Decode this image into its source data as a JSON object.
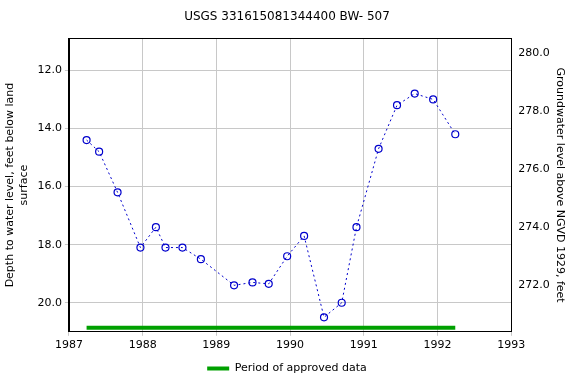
{
  "chart_data": {
    "type": "line",
    "title": "USGS 331615081344400 BW- 507",
    "y_label": "Depth to water level, feet below land surface",
    "y2_label": "Groundwater level above NGVD 1929, feet",
    "xlim": [
      1987,
      1993
    ],
    "xticks": [
      1987,
      1988,
      1989,
      1990,
      1991,
      1992,
      1993
    ],
    "ylim": [
      21.0,
      10.9
    ],
    "yticks": [
      {
        "value": 12,
        "label": "12.0"
      },
      {
        "value": 14,
        "label": "14.0"
      },
      {
        "value": 16,
        "label": "16.0"
      },
      {
        "value": 18,
        "label": "18.0"
      },
      {
        "value": 20,
        "label": "20.0"
      }
    ],
    "y2lim": [
      270.4,
      280.5
    ],
    "y2ticks": [
      {
        "value": 272,
        "label": "272.0"
      },
      {
        "value": 274,
        "label": "274.0"
      },
      {
        "value": 276,
        "label": "276.0"
      },
      {
        "value": 278,
        "label": "278.0"
      },
      {
        "value": 280,
        "label": "280.0"
      }
    ],
    "grid": true,
    "legend": "bottom",
    "series": [
      {
        "color": "#0000cc",
        "marker": "circle",
        "line_style": "dotted",
        "x": [
          1987.24,
          1987.41,
          1987.66,
          1987.97,
          1988.18,
          1988.31,
          1988.54,
          1988.79,
          1989.24,
          1989.49,
          1989.71,
          1989.96,
          1990.19,
          1990.46,
          1990.7,
          1990.9,
          1991.2,
          1991.45,
          1991.69,
          1991.94,
          1992.24
        ],
        "values": [
          14.4,
          14.8,
          16.2,
          18.1,
          17.4,
          18.1,
          18.1,
          18.5,
          19.4,
          19.3,
          19.35,
          18.4,
          17.7,
          20.5,
          20.0,
          17.4,
          14.7,
          13.2,
          12.8,
          13.0,
          14.2
        ]
      }
    ],
    "approved_period": {
      "name": "Period of approved data",
      "color": "#00a000",
      "x": [
        1987.24,
        1992.24
      ]
    }
  }
}
